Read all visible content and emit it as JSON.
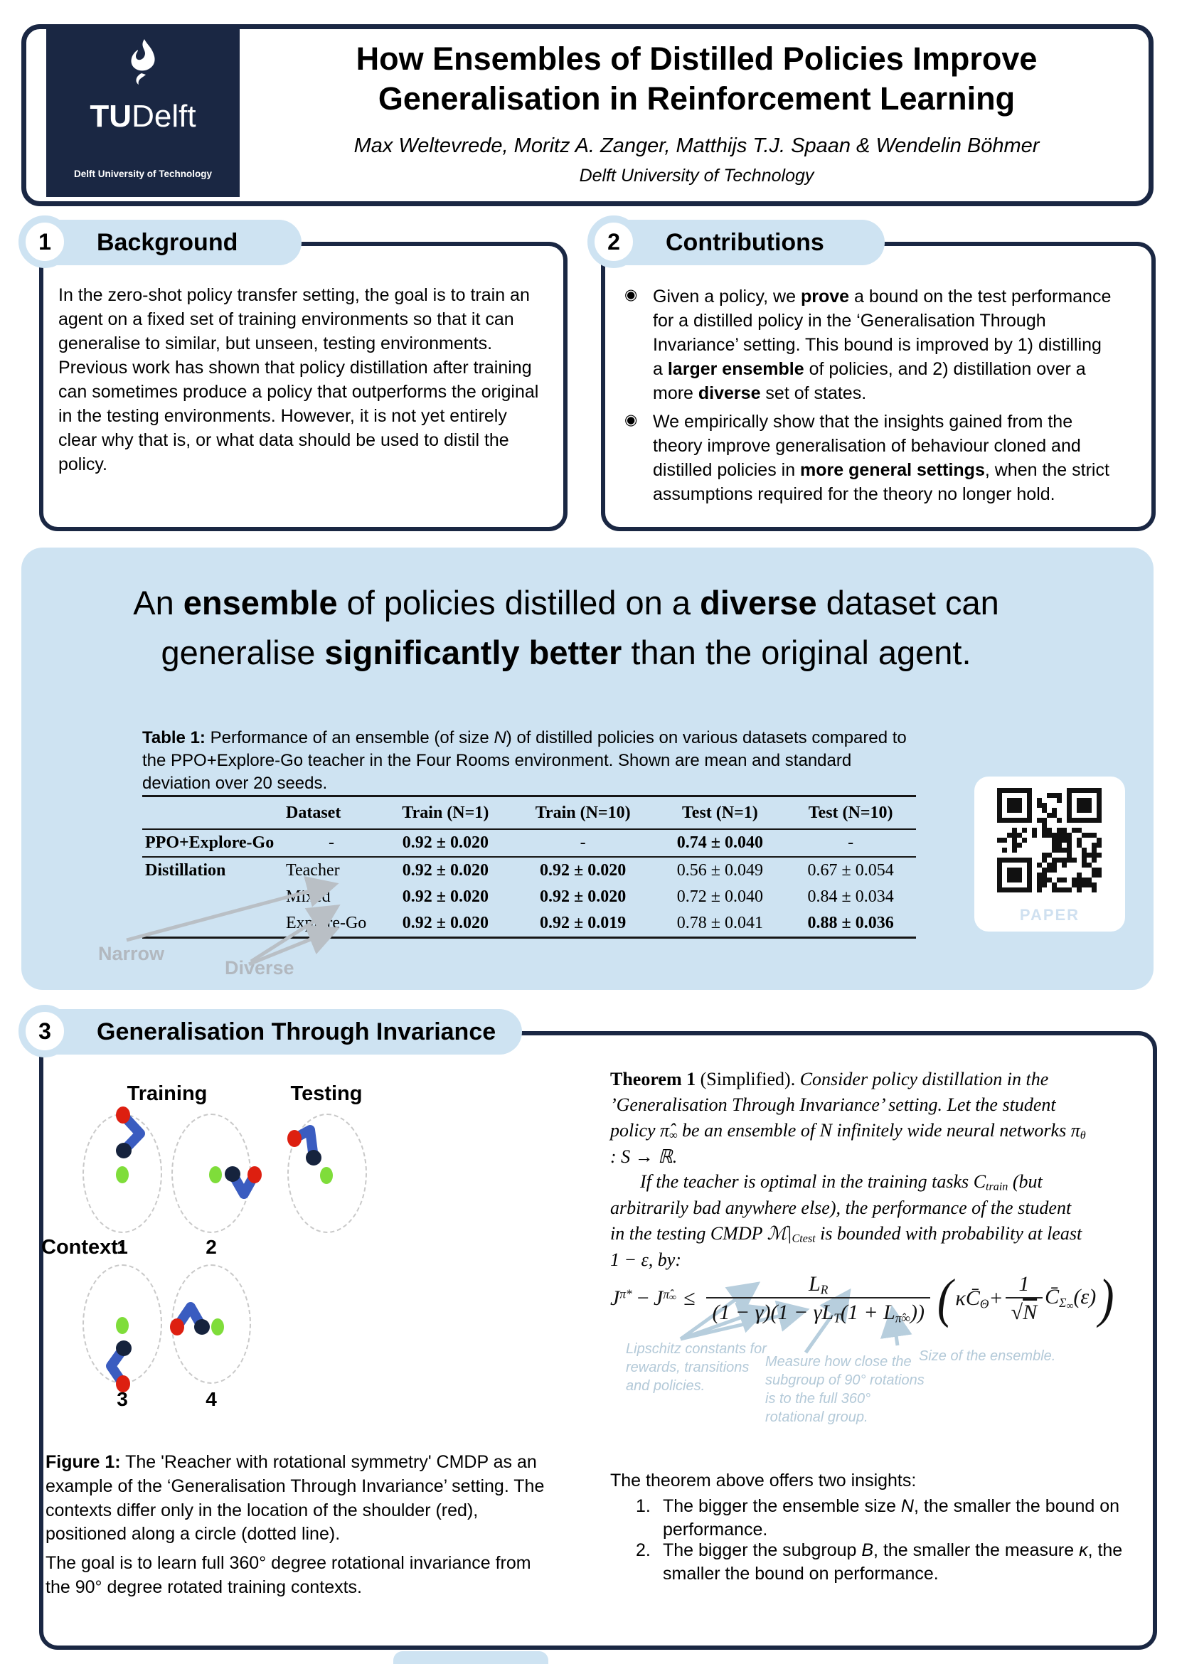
{
  "colors": {
    "navy": "#1a2743",
    "light_blue": "#cee3f2",
    "annotation_blue": "#b3c9d8",
    "gray_label": "#b2b8bf",
    "arm_blue": "#3a5cc0",
    "dot_red": "#dd1f10",
    "dot_green": "#7fdd3a",
    "dot_navy": "#16233d"
  },
  "header": {
    "logo_tu": "TU",
    "logo_delft": "Delft",
    "logo_subtitle": "Delft University of Technology",
    "title_line1": "How Ensembles of Distilled Policies Improve",
    "title_line2": "Generalisation in Reinforcement Learning",
    "authors": "Max Weltevrede, Moritz A. Zanger, Matthijs T.J. Spaan & Wendelin Böhmer",
    "affiliation": "Delft University of Technology"
  },
  "sections": {
    "background": {
      "number": "1",
      "title": "Background",
      "body": "In the zero-shot policy transfer setting, the goal is to train an agent on a fixed set of training environments so that it can generalise to similar, but unseen, testing environments. Previous work has shown that policy distillation after training can sometimes produce a policy that outperforms the original in the testing environments. However, it is not yet entirely clear why that is, or what data should be used to distil the policy."
    },
    "contributions": {
      "number": "2",
      "title": "Contributions",
      "bullet_glyph": "◉",
      "bullet1": [
        {
          "t": "Given a policy, we "
        },
        {
          "t": "prove",
          "b": 1
        },
        {
          "t": " a bound on the test performance for a distilled policy in the ‘Generalisation Through Invariance’ setting. This bound is improved by 1) distilling a "
        },
        {
          "t": "larger ensemble",
          "b": 1
        },
        {
          "t": " of policies, and 2) distillation over a more "
        },
        {
          "t": "diverse",
          "b": 1
        },
        {
          "t": " set of states."
        }
      ],
      "bullet2": [
        {
          "t": "We empirically show that the insights gained from the theory improve generalisation of behaviour cloned and distilled policies in "
        },
        {
          "t": "more general settings",
          "b": 1
        },
        {
          "t": ", when the strict assumptions required for the theory no longer hold."
        }
      ]
    },
    "gti": {
      "number": "3",
      "title": "Generalisation Through Invariance"
    }
  },
  "highlight": {
    "statement_line1": [
      {
        "t": "An "
      },
      {
        "t": "ensemble",
        "b": 1
      },
      {
        "t": " of policies distilled on a "
      },
      {
        "t": "diverse",
        "b": 1
      },
      {
        "t": " dataset can"
      }
    ],
    "statement_line2": [
      {
        "t": "generalise "
      },
      {
        "t": "significantly better",
        "b": 1
      },
      {
        "t": " than the original agent."
      }
    ],
    "table_caption": [
      {
        "t": "Table 1:",
        "b": 1
      },
      {
        "t": " Performance of an ensemble (of size "
      },
      {
        "t": "N",
        "i": 1
      },
      {
        "t": ") of distilled policies on various datasets compared to the PPO+Explore-Go teacher in the Four Rooms environment. Shown are mean and standard deviation over 20 seeds."
      }
    ],
    "table": {
      "headers": [
        "",
        "Dataset",
        "Train (N=1)",
        "Train (N=10)",
        "Test (N=1)",
        "Test (N=10)"
      ],
      "rows": [
        {
          "label": "PPO+Explore-Go",
          "dataset": "-",
          "cells": [
            [
              {
                "t": "0.92 ± 0.020",
                "b": 1
              }
            ],
            [
              {
                "t": "-"
              }
            ],
            [
              {
                "t": "0.74 ± 0.040",
                "b": 1
              }
            ],
            [
              {
                "t": "-"
              }
            ]
          ]
        },
        {
          "label": "Distillation",
          "dataset": "Teacher",
          "cells": [
            [
              {
                "t": "0.92 ± 0.020",
                "b": 1
              }
            ],
            [
              {
                "t": "0.92 ± 0.020",
                "b": 1
              }
            ],
            [
              {
                "t": "0.56 ± 0.049"
              }
            ],
            [
              {
                "t": "0.67 ± 0.054"
              }
            ]
          ]
        },
        {
          "label": "",
          "dataset": "Mixed",
          "cells": [
            [
              {
                "t": "0.92 ± 0.020",
                "b": 1
              }
            ],
            [
              {
                "t": "0.92 ± 0.020",
                "b": 1
              }
            ],
            [
              {
                "t": "0.72 ± 0.040"
              }
            ],
            [
              {
                "t": "0.84 ± 0.034"
              }
            ]
          ]
        },
        {
          "label": "",
          "dataset": "Explore-Go",
          "cells": [
            [
              {
                "t": "0.92 ± 0.020",
                "b": 1
              }
            ],
            [
              {
                "t": "0.92 ± 0.019",
                "b": 1
              }
            ],
            [
              {
                "t": "0.78 ± 0.041"
              }
            ],
            [
              {
                "t": "0.88 ± 0.036",
                "b": 1
              }
            ]
          ]
        }
      ]
    },
    "narrow_label": "Narrow",
    "diverse_label": "Diverse",
    "qr_label": "PAPER"
  },
  "figure": {
    "training_label": "Training",
    "testing_label": "Testing",
    "context_label": "Context:",
    "context_numbers": [
      "1",
      "2",
      "3",
      "4"
    ],
    "caption": [
      {
        "t": "Figure 1:",
        "b": 1
      },
      {
        "t": "  The 'Reacher with rotational symmetry' CMDP as an example of the ‘Generalisation Through Invariance’ setting. The contexts differ only in the location of the shoulder (red), positioned along a circle (dotted line)."
      }
    ],
    "goal": "The goal is to learn full 360° degree rotational invariance from the 90° degree rotated training contexts."
  },
  "theorem": {
    "para1": [
      {
        "t": "Theorem 1",
        "b": 1
      },
      {
        "t": " (Simplified). "
      },
      {
        "t": "Consider policy distillation in the ’Generalisation Through Invariance’ setting. Let the student policy ",
        "i": 1
      },
      {
        "t": "π̂",
        "i": 1
      },
      {
        "t": "∞",
        "i": 1,
        "sub": 1
      },
      {
        "t": " be an ensemble of ",
        "i": 1
      },
      {
        "t": "N",
        "i": 1
      },
      {
        "t": " infinitely wide neural networks ",
        "i": 1
      },
      {
        "t": "π",
        "i": 1
      },
      {
        "t": "θ",
        "i": 1,
        "sub": 1
      },
      {
        "t": " : S → ℝ.",
        "i": 1
      }
    ],
    "para2": [
      {
        "t": "If the teacher is optimal in the training tasks ",
        "i": 1
      },
      {
        "t": "C",
        "i": 1
      },
      {
        "t": "train",
        "i": 1,
        "sub": 1
      },
      {
        "t": " (but arbitrarily bad anywhere else), the performance of the student in the testing CMDP ",
        "i": 1
      },
      {
        "t": "ℳ|",
        "i": 1
      },
      {
        "t": "Ctest",
        "i": 1,
        "sub": 1
      },
      {
        "t": " is bounded with probability at least 1 − ε, by:",
        "i": 1
      }
    ]
  },
  "equation": {
    "J": "J",
    "sup_pi_star": "π*",
    "minus": "−",
    "sup_pi_hat": "π̂",
    "inf": "∞",
    "leq": "≤",
    "num_L": "L",
    "num_R": "R",
    "den_a": "(1 − γ)(1 − γL",
    "den_T": "T",
    "den_b": "(1 + L",
    "den_pihat": "π̂∞",
    "den_c": "))",
    "paren_l": "(",
    "kappa_C": "κC̄",
    "theta": "Θ",
    "plus": "+",
    "one": "1",
    "root": "√",
    "N": "N",
    "C2": "C̄",
    "sigma": "Σ",
    "inf2": "∞",
    "eps": "(ε)",
    "paren_r": ")"
  },
  "annotations": {
    "lipschitz": "Lipschitz constants for rewards, transitions and policies.",
    "kappa": "Measure how close the subgroup of 90° rotations is to the full 360° rotational group.",
    "ensemble": "Size of the ensemble."
  },
  "insights": {
    "intro": "The theorem above offers two insights:",
    "item1_no": "1.",
    "item2_no": "2.",
    "item1": [
      {
        "t": "The bigger the ensemble size "
      },
      {
        "t": "N",
        "i": 1
      },
      {
        "t": ", the smaller the bound on performance."
      }
    ],
    "item2": [
      {
        "t": "The bigger the subgroup "
      },
      {
        "t": "B",
        "i": 1
      },
      {
        "t": ", the smaller the measure "
      },
      {
        "t": "κ",
        "i": 1
      },
      {
        "t": ", the smaller the bound on performance."
      }
    ]
  }
}
